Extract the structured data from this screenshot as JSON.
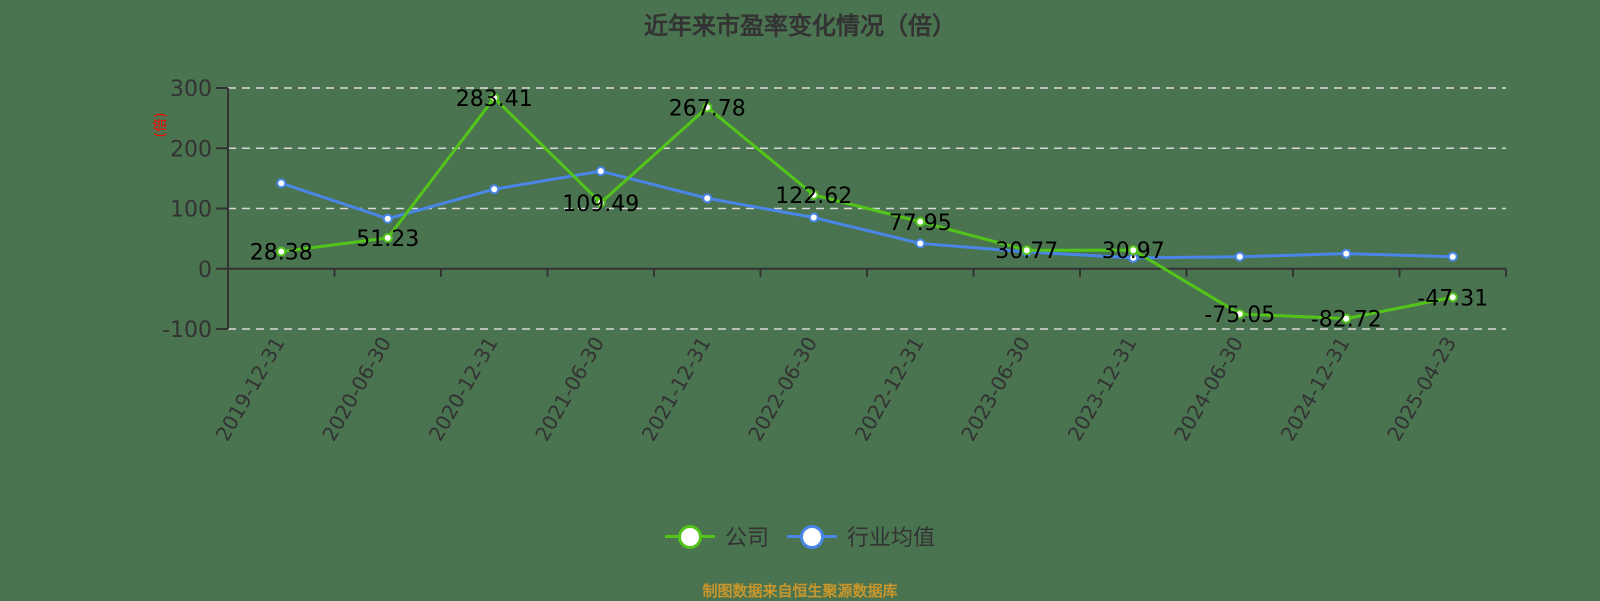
{
  "title": "近年来市盈率变化情况（倍）",
  "source": "制图数据来自恒生聚源数据库",
  "y_axis_unit_label": "(倍)",
  "legend": [
    {
      "label": "公司",
      "color": "#52c41a"
    },
    {
      "label": "行业均值",
      "color": "#4a86e8"
    }
  ],
  "colors": {
    "background": "#4a7350",
    "company": "#52c41a",
    "industry": "#4a86e8",
    "grid": "#d9d9d9",
    "axis": "#333333",
    "source": "#c8962c"
  },
  "chart_data": {
    "type": "line",
    "title": "近年来市盈率变化情况（倍）",
    "xlabel": "",
    "ylabel": "(倍)",
    "ylim": [
      -100,
      300
    ],
    "yticks": [
      300,
      200,
      100,
      0,
      -100
    ],
    "grid": true,
    "legend_position": "bottom",
    "categories": [
      "2019-12-31",
      "2020-06-30",
      "2020-12-31",
      "2021-06-30",
      "2021-12-31",
      "2022-06-30",
      "2022-12-31",
      "2023-06-30",
      "2023-12-31",
      "2024-06-30",
      "2024-12-31",
      "2025-04-23"
    ],
    "series": [
      {
        "name": "公司",
        "values": [
          28.38,
          51.23,
          283.41,
          109.49,
          267.78,
          122.62,
          77.95,
          30.77,
          30.97,
          -75.05,
          -82.72,
          -47.31
        ],
        "labels": [
          "28.38",
          "51.23",
          "283.41",
          "109.49",
          "267.78",
          "122.62",
          "77.95",
          "30.77",
          "30.97",
          "-75.05",
          "-82.72",
          "-47.31"
        ]
      },
      {
        "name": "行业均值",
        "values": [
          142,
          83,
          132,
          162,
          117,
          85,
          42,
          28,
          18,
          20,
          25,
          20
        ]
      }
    ]
  }
}
